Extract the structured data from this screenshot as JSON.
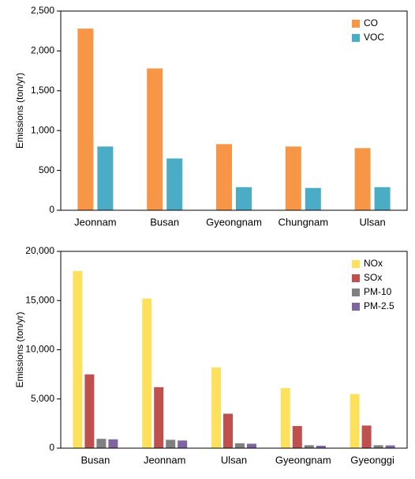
{
  "chart_data": [
    {
      "type": "bar",
      "y_label": "Emissions (ton/yr)",
      "categories": [
        "Jeonnam",
        "Busan",
        "Gyeongnam",
        "Chungnam",
        "Ulsan"
      ],
      "series": [
        {
          "name": "CO",
          "color": "#f79646",
          "values": [
            2280,
            1780,
            830,
            800,
            780
          ]
        },
        {
          "name": "VOC",
          "color": "#4bacc6",
          "values": [
            800,
            650,
            290,
            280,
            290
          ]
        }
      ],
      "ylim": [
        0,
        2500
      ],
      "yticks": [
        0,
        500,
        {
          "value": 1000,
          "label": "1,000"
        },
        {
          "value": 1500,
          "label": "1,500"
        },
        {
          "value": 2000,
          "label": "2,000"
        },
        {
          "value": 2500,
          "label": "2,500"
        }
      ],
      "legend": "upper right"
    },
    {
      "type": "bar",
      "y_label": "Emissions (ton/yr)",
      "categories": [
        "Busan",
        "Jeonnam",
        "Ulsan",
        "Gyeongnam",
        "Gyeonggi"
      ],
      "series": [
        {
          "name": "NOx",
          "color": "#fde15c",
          "values": [
            18000,
            15200,
            8200,
            6100,
            5500
          ]
        },
        {
          "name": "SOx",
          "color": "#c0504d",
          "values": [
            7500,
            6200,
            3500,
            2250,
            2300
          ]
        },
        {
          "name": "PM-10",
          "color": "#808080",
          "values": [
            950,
            850,
            500,
            300,
            300
          ]
        },
        {
          "name": "PM-2.5",
          "color": "#8064a2",
          "values": [
            900,
            780,
            450,
            250,
            280
          ]
        }
      ],
      "ylim": [
        0,
        20000
      ],
      "yticks": [
        0,
        {
          "value": 5000,
          "label": "5,000"
        },
        {
          "value": 10000,
          "label": "10,000"
        },
        {
          "value": 15000,
          "label": "15,000"
        },
        {
          "value": 20000,
          "label": "20,000"
        }
      ],
      "legend": "upper right"
    }
  ]
}
